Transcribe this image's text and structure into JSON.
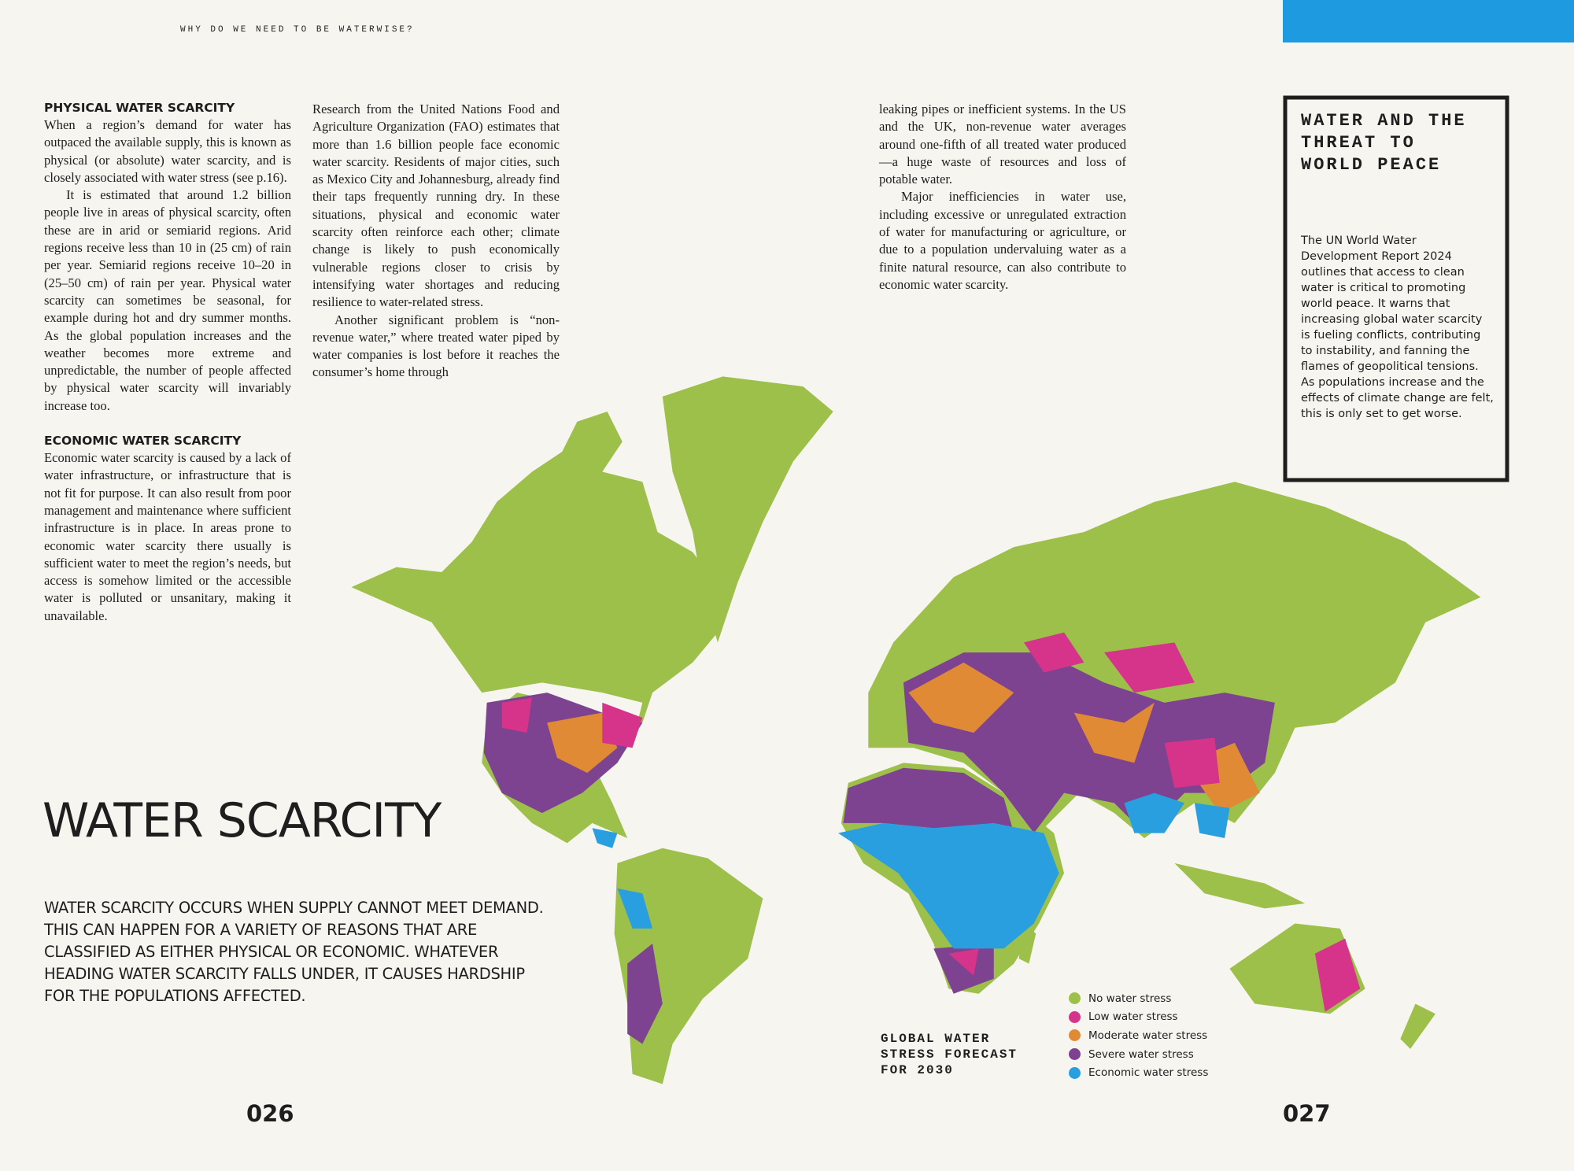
{
  "header": "WHY DO WE NEED TO BE WATERWISE?",
  "columns": [
    {
      "heading": "PHYSICAL WATER SCARCITY",
      "paragraphs": [
        "When a region’s demand for water has outpaced the available supply, this is known as physical (or absolute) water scarcity, and is closely associated with water stress (see p.16).",
        "It is estimated that around 1.2 billion people live in areas of physical scarcity, often these are in arid or semiarid regions. Arid regions receive less than 10 in (25 cm) of rain per year. Semiarid regions receive 10–20 in (25–50 cm) of rain per year. Physical water scarcity can sometimes be seasonal, for example during hot and dry summer months. As the global population increases and the weather becomes more extreme and unpredictable, the number of people affected by physical water scarcity will invariably increase too."
      ],
      "heading2": "ECONOMIC WATER SCARCITY",
      "paragraphs2": [
        "Economic water scarcity is caused by a lack of water infrastructure, or infrastructure that is not fit for purpose. It can also result from poor management and maintenance where sufficient infrastructure is in place. In areas prone to economic water scarcity there usually is sufficient water to meet the region’s needs, but access is somehow limited or the accessible water is polluted or unsanitary, making it unavailable."
      ]
    },
    {
      "paragraphs": [
        "Research from the United Nations Food and Agriculture Organization (FAO) estimates that more than 1.6 billion people face economic water scarcity. Residents of major cities, such as Mexico City and Johannesburg, already find their taps frequently running dry. In these situations, physical and economic water scarcity often reinforce each other; climate change is likely to push economically vulnerable regions closer to crisis by intensifying water shortages and reducing resilience to water-related stress.",
        "Another significant problem is “non-revenue water,” where treated water piped by water companies is lost before it reaches the consumer’s home through"
      ]
    },
    {
      "paragraphs": [
        "leaking pipes or inefficient systems. In the US and the UK, non-revenue water averages around one-fifth of all treated water produced—a huge waste of resources and loss of potable water.",
        "Major inefficiencies in water use, including excessive or unregulated extraction of water for manufacturing or agriculture, or due to a population undervaluing water as a finite natural resource, can also contribute to economic water scarcity."
      ]
    }
  ],
  "sidebar": {
    "title": "WATER AND THE THREAT TO WORLD PEACE",
    "body": "The UN World Water Development Report 2024 outlines that access to clean water is critical to promoting world peace. It warns that increasing global water scarcity is fueling conflicts, contributing to instability, and fanning the flames of geopolitical tensions. As populations increase and the effects of climate change are felt, this is only set to get worse."
  },
  "title": "WATER SCARCITY",
  "intro": "WATER SCARCITY OCCURS WHEN SUPPLY CANNOT MEET DEMAND. THIS CAN HAPPEN FOR A VARIETY OF REASONS THAT ARE CLASSIFIED AS EITHER PHYSICAL OR ECONOMIC. WHATEVER HEADING WATER SCARCITY FALLS UNDER, IT CAUSES HARDSHIP FOR THE POPULATIONS AFFECTED.",
  "map": {
    "caption": "GLOBAL WATER STRESS FORECAST FOR 2030",
    "legend": [
      {
        "label": "No water stress",
        "color": "#9dc04a"
      },
      {
        "label": "Low water stress",
        "color": "#d6338a"
      },
      {
        "label": "Moderate water stress",
        "color": "#e08a35"
      },
      {
        "label": "Severe water stress",
        "color": "#7d4390"
      },
      {
        "label": "Economic water stress",
        "color": "#2a9fe0"
      }
    ]
  },
  "page_numbers": [
    "026",
    "027"
  ]
}
